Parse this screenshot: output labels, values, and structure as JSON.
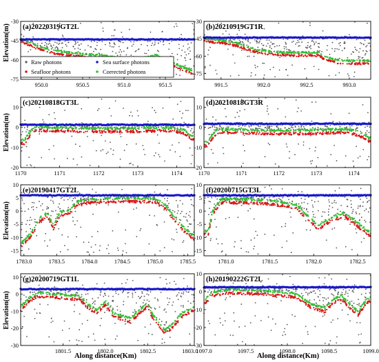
{
  "figure": {
    "ylabel": "Elevation(m)",
    "xlabel": "Along distance(Km)",
    "legend": [
      {
        "label": "Raw photons",
        "color": "#555555"
      },
      {
        "label": "Sea surface photons",
        "color": "#1818c8"
      },
      {
        "label": "Seafloor photons",
        "color": "#d81818"
      },
      {
        "label": "Corrected photons",
        "color": "#30c030"
      }
    ]
  },
  "chart_data": [
    {
      "type": "scatter",
      "title": "(a)20220319GT2L",
      "xlim": [
        949.75,
        951.85
      ],
      "ylim": [
        -75,
        -30
      ],
      "xticks": [
        950.0,
        950.5,
        951.0,
        951.5
      ],
      "xtick_labels": [
        "950.0",
        "950.5",
        "951.0",
        "951.5"
      ],
      "yticks": [
        -30,
        -45,
        -60,
        -75
      ],
      "ytick_labels": [
        "-30",
        "-45",
        "-60",
        "-75"
      ],
      "surface": -44,
      "floor_profile": [
        [
          949.75,
          -44
        ],
        [
          949.85,
          -47
        ],
        [
          950.0,
          -51
        ],
        [
          950.2,
          -54
        ],
        [
          950.5,
          -56
        ],
        [
          950.8,
          -58
        ],
        [
          951.0,
          -60
        ],
        [
          951.2,
          -59
        ],
        [
          951.4,
          -57
        ],
        [
          951.55,
          -62
        ],
        [
          951.7,
          -66
        ],
        [
          951.85,
          -70
        ]
      ],
      "series": [
        {
          "name": "Raw photons",
          "color": "#555555"
        },
        {
          "name": "Sea surface photons",
          "color": "#1818c8"
        },
        {
          "name": "Seafloor photons",
          "color": "#d81818"
        },
        {
          "name": "Corrected photons",
          "color": "#30c030"
        }
      ]
    },
    {
      "type": "scatter",
      "title": "(b)20210919GT1R",
      "xlim": [
        991.3,
        993.25
      ],
      "ylim": [
        -80,
        -30
      ],
      "xticks": [
        991.5,
        992.0,
        992.5,
        993.0
      ],
      "xtick_labels": [
        "991.5",
        "992.0",
        "992.5",
        "993.0"
      ],
      "yticks": [
        -30,
        -45,
        -60,
        -75
      ],
      "ytick_labels": [
        "-30",
        "-45",
        "-60",
        "-75"
      ],
      "surface": -44,
      "floor_profile": [
        [
          991.3,
          -46
        ],
        [
          991.5,
          -47
        ],
        [
          991.7,
          -50
        ],
        [
          991.9,
          -55
        ],
        [
          992.1,
          -57
        ],
        [
          992.3,
          -58
        ],
        [
          992.5,
          -58
        ],
        [
          992.65,
          -58
        ],
        [
          992.72,
          -62
        ],
        [
          992.85,
          -64
        ],
        [
          993.0,
          -65
        ],
        [
          993.25,
          -65
        ]
      ],
      "series": [
        {
          "name": "Raw photons",
          "color": "#555555"
        },
        {
          "name": "Sea surface photons",
          "color": "#1818c8"
        },
        {
          "name": "Seafloor photons",
          "color": "#d81818"
        },
        {
          "name": "Corrected photons",
          "color": "#30c030"
        }
      ]
    },
    {
      "type": "scatter",
      "title": "(c)20210818GT3L",
      "xlim": [
        1170,
        1174.45
      ],
      "ylim": [
        -20,
        15
      ],
      "xticks": [
        1170,
        1171,
        1172,
        1173,
        1174
      ],
      "xtick_labels": [
        "1170",
        "1171",
        "1172",
        "1173",
        "1174"
      ],
      "yticks": [
        -20,
        -10,
        0,
        10
      ],
      "ytick_labels": [
        "-20",
        "-10",
        "0",
        "10"
      ],
      "surface": 1.3,
      "floor_profile": [
        [
          1170.1,
          -7
        ],
        [
          1170.2,
          -4
        ],
        [
          1170.35,
          -0.5
        ],
        [
          1171.0,
          -0.8
        ],
        [
          1172.0,
          -1.2
        ],
        [
          1173.0,
          -1
        ],
        [
          1173.8,
          -0.6
        ],
        [
          1174.2,
          -2
        ],
        [
          1174.4,
          -5
        ]
      ],
      "series": [
        {
          "name": "Raw photons",
          "color": "#555555"
        },
        {
          "name": "Sea surface photons",
          "color": "#1818c8"
        },
        {
          "name": "Seafloor photons",
          "color": "#d81818"
        },
        {
          "name": "Corrected photons",
          "color": "#30c030"
        }
      ]
    },
    {
      "type": "scatter",
      "title": "(d)20210818GT3R",
      "xlim": [
        1170,
        1174.45
      ],
      "ylim": [
        -20,
        15
      ],
      "xticks": [
        1170,
        1171,
        1172,
        1173,
        1174
      ],
      "xtick_labels": [
        "1170",
        "1171",
        "1172",
        "1173",
        "1174"
      ],
      "yticks": [
        -20,
        -10,
        0,
        10
      ],
      "ytick_labels": [
        "-20",
        "-10",
        "0",
        "10"
      ],
      "surface": 1.8,
      "floor_profile": [
        [
          1170.1,
          -8
        ],
        [
          1170.2,
          -5
        ],
        [
          1170.35,
          -1.5
        ],
        [
          1171.0,
          -1.8
        ],
        [
          1172.0,
          -2.2
        ],
        [
          1173.0,
          -2
        ],
        [
          1173.8,
          -1.5
        ],
        [
          1174.15,
          -3
        ],
        [
          1174.4,
          -6
        ]
      ],
      "series": [
        {
          "name": "Raw photons",
          "color": "#555555"
        },
        {
          "name": "Sea surface photons",
          "color": "#1818c8"
        },
        {
          "name": "Seafloor photons",
          "color": "#d81818"
        },
        {
          "name": "Corrected photons",
          "color": "#30c030"
        }
      ]
    },
    {
      "type": "scatter",
      "title": "(e)20190417GT2L",
      "xlim": [
        1782.95,
        1785.6
      ],
      "ylim": [
        -17,
        10
      ],
      "xticks": [
        1783.0,
        1783.5,
        1784.0,
        1784.5,
        1785.0,
        1785.5
      ],
      "xtick_labels": [
        "1783.0",
        "1783.5",
        "1784.0",
        "1784.5",
        "1785.0",
        "1785.5"
      ],
      "yticks": [
        -15,
        -10,
        -5,
        0,
        5,
        10
      ],
      "ytick_labels": [
        "-15",
        "-10",
        "-5",
        "0",
        "5",
        "10"
      ],
      "surface": 6,
      "floor_profile": [
        [
          1782.95,
          -13
        ],
        [
          1783.1,
          -9
        ],
        [
          1783.25,
          -3
        ],
        [
          1783.35,
          -1
        ],
        [
          1783.45,
          -6
        ],
        [
          1783.55,
          -1
        ],
        [
          1783.7,
          0
        ],
        [
          1783.8,
          3
        ],
        [
          1784.0,
          4
        ],
        [
          1784.5,
          4.5
        ],
        [
          1785.0,
          4.2
        ],
        [
          1785.15,
          2
        ],
        [
          1785.3,
          -3
        ],
        [
          1785.45,
          -7
        ],
        [
          1785.6,
          -10
        ]
      ],
      "series": [
        {
          "name": "Raw photons",
          "color": "#555555"
        },
        {
          "name": "Sea surface photons",
          "color": "#1818c8"
        },
        {
          "name": "Seafloor photons",
          "color": "#d81818"
        },
        {
          "name": "Corrected photons",
          "color": "#30c030"
        }
      ]
    },
    {
      "type": "scatter",
      "title": "(f)20200715GT3L",
      "xlim": [
        1780.75,
        1782.65
      ],
      "ylim": [
        -17,
        10
      ],
      "xticks": [
        1781.0,
        1781.5,
        1782.0,
        1782.5
      ],
      "xtick_labels": [
        "1781.0",
        "1781.5",
        "1782.0",
        "1782.5"
      ],
      "yticks": [
        -15,
        -10,
        -5,
        0,
        5,
        10
      ],
      "ytick_labels": [
        "-15",
        "-10",
        "-5",
        "0",
        "5",
        "10"
      ],
      "surface": 6,
      "floor_profile": [
        [
          1780.8,
          -8
        ],
        [
          1780.85,
          0
        ],
        [
          1780.95,
          4
        ],
        [
          1781.2,
          4
        ],
        [
          1781.5,
          3.5
        ],
        [
          1781.8,
          2
        ],
        [
          1781.95,
          -3
        ],
        [
          1782.05,
          -6
        ],
        [
          1782.2,
          -3
        ],
        [
          1782.35,
          -1
        ],
        [
          1782.5,
          -5
        ],
        [
          1782.65,
          -9
        ]
      ],
      "series": [
        {
          "name": "Raw photons",
          "color": "#555555"
        },
        {
          "name": "Sea surface photons",
          "color": "#1818c8"
        },
        {
          "name": "Seafloor photons",
          "color": "#d81818"
        },
        {
          "name": "Corrected photons",
          "color": "#30c030"
        }
      ]
    },
    {
      "type": "scatter",
      "title": "(g)20200719GT1L",
      "xlim": [
        1801.0,
        1803.05
      ],
      "ylim": [
        -30,
        12
      ],
      "xticks": [
        1801.5,
        1802.0,
        1802.5,
        1803.0
      ],
      "xtick_labels": [
        "1801.5",
        "1802.0",
        "1802.5",
        "1803.0"
      ],
      "yticks": [
        -30,
        -20,
        -10,
        0,
        10
      ],
      "ytick_labels": [
        "-30",
        "-20",
        "-10",
        "0",
        "10"
      ],
      "surface": 3,
      "floor_profile": [
        [
          1801.0,
          -8
        ],
        [
          1801.1,
          -3
        ],
        [
          1801.2,
          0
        ],
        [
          1801.5,
          -1
        ],
        [
          1801.7,
          -2
        ],
        [
          1801.8,
          -7
        ],
        [
          1801.9,
          -10
        ],
        [
          1802.0,
          -5
        ],
        [
          1802.1,
          -12
        ],
        [
          1802.3,
          -15
        ],
        [
          1802.4,
          -10
        ],
        [
          1802.5,
          -6
        ],
        [
          1802.55,
          -12
        ],
        [
          1802.7,
          -22
        ],
        [
          1802.8,
          -18
        ],
        [
          1802.9,
          -12
        ],
        [
          1803.05,
          -8
        ]
      ],
      "series": [
        {
          "name": "Raw photons",
          "color": "#555555"
        },
        {
          "name": "Sea surface photons",
          "color": "#1818c8"
        },
        {
          "name": "Seafloor photons",
          "color": "#d81818"
        },
        {
          "name": "Corrected photons",
          "color": "#30c030"
        }
      ]
    },
    {
      "type": "scatter",
      "title": "(h)20190222GT2L",
      "xlim": [
        1097.0,
        1099.0
      ],
      "ylim": [
        -30,
        10
      ],
      "xticks": [
        1097.0,
        1097.5,
        1098.0,
        1098.5,
        1099.0
      ],
      "xtick_labels": [
        "1097.0",
        "1097.5",
        "1098.0",
        "1098.5",
        "1099.0"
      ],
      "yticks": [
        -30,
        -20,
        -10,
        0,
        10
      ],
      "ytick_labels": [
        "-30",
        "-20",
        "-10",
        "0",
        "10"
      ],
      "surface": 2.5,
      "floor_profile": [
        [
          1097.0,
          -6
        ],
        [
          1097.1,
          -1
        ],
        [
          1097.3,
          0.5
        ],
        [
          1097.6,
          0
        ],
        [
          1097.9,
          -1
        ],
        [
          1098.1,
          -2
        ],
        [
          1098.3,
          -8
        ],
        [
          1098.45,
          -10
        ],
        [
          1098.55,
          -5
        ],
        [
          1098.65,
          -3
        ],
        [
          1098.75,
          -8
        ],
        [
          1098.85,
          -12
        ],
        [
          1098.95,
          -5
        ],
        [
          1099.0,
          -4
        ]
      ],
      "series": [
        {
          "name": "Raw photons",
          "color": "#555555"
        },
        {
          "name": "Sea surface photons",
          "color": "#1818c8"
        },
        {
          "name": "Seafloor photons",
          "color": "#d81818"
        },
        {
          "name": "Corrected photons",
          "color": "#30c030"
        }
      ]
    }
  ]
}
